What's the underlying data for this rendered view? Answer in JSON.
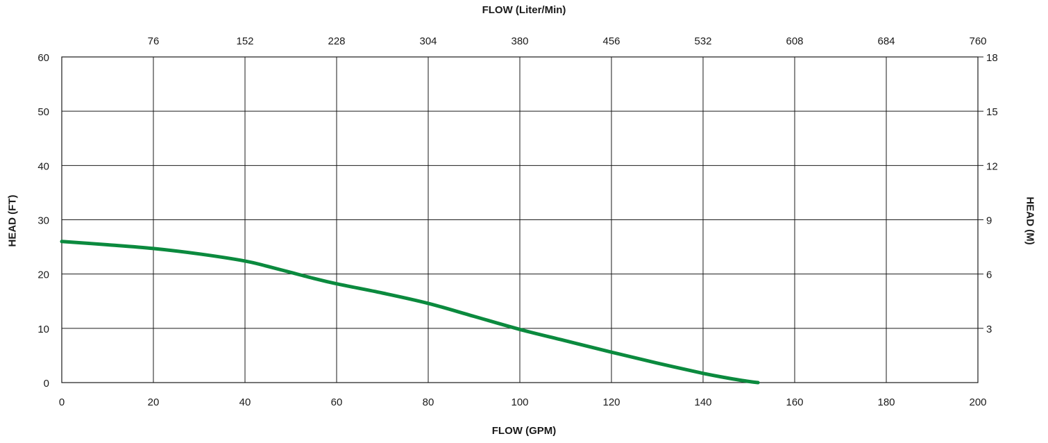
{
  "chart_data": {
    "type": "line",
    "xlabel": "FLOW (GPM)",
    "x2label": "FLOW (Liter/Min)",
    "ylabel": "HEAD (FT)",
    "y2label": "HEAD (M)",
    "xlim": [
      0,
      200
    ],
    "ylim": [
      0,
      60
    ],
    "x_ticks": [
      0,
      20,
      40,
      60,
      80,
      100,
      120,
      140,
      160,
      180,
      200
    ],
    "y_ticks": [
      0,
      10,
      20,
      30,
      40,
      50,
      60
    ],
    "x2_ticks": [
      76,
      152,
      228,
      304,
      380,
      456,
      532,
      608,
      684,
      760
    ],
    "y2_ticks": [
      3,
      6,
      9,
      12,
      15,
      18
    ],
    "grid": true,
    "series": [
      {
        "color": "#0b8a3e",
        "x": [
          0,
          10,
          20,
          30,
          40,
          45,
          50,
          55,
          60,
          70,
          80,
          90,
          100,
          110,
          120,
          130,
          140,
          145,
          150,
          152
        ],
        "y": [
          26,
          25.4,
          24.7,
          23.7,
          22.4,
          21.4,
          20.3,
          19.2,
          18.2,
          16.5,
          14.6,
          12.2,
          9.8,
          7.7,
          5.6,
          3.6,
          1.7,
          0.9,
          0.2,
          0
        ]
      }
    ]
  }
}
